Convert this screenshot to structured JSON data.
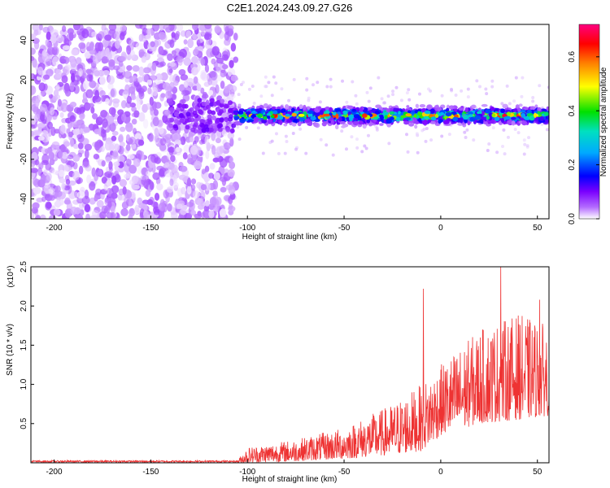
{
  "title": "C2E1.2024.243.09.27.G26",
  "chart_data": [
    {
      "type": "heatmap",
      "xlabel": "Height of straight line (km)",
      "ylabel": "Frequency (Hz)",
      "xlim": [
        -212,
        56
      ],
      "ylim": [
        -50,
        48
      ],
      "xticks": [
        -200,
        -150,
        -100,
        -50,
        0,
        50
      ],
      "xtick_labels": [
        "-200",
        "-150",
        "-100",
        "-50",
        "0",
        "50"
      ],
      "yticks": [
        -40,
        -20,
        0,
        20,
        40
      ],
      "ytick_labels": [
        "-40",
        "-20",
        "0",
        "20",
        "40"
      ],
      "regions": [
        {
          "x_range": [
            -212,
            -106
          ],
          "freq_range": [
            -50,
            48
          ],
          "amplitude": [
            0.02,
            0.05
          ]
        },
        {
          "x_range": [
            -106,
            56
          ],
          "freq_center": 2,
          "freq_halfwidth": 6,
          "amplitude": [
            0.05,
            0.7
          ]
        }
      ],
      "colorbar": {
        "label": "Normalized spectral amplitude",
        "range": [
          0.0,
          0.72
        ],
        "ticks": [
          0.0,
          0.2,
          0.4,
          0.6
        ],
        "tick_labels": [
          "0.0",
          "0.2",
          "0.4",
          "0.6"
        ],
        "colors": [
          "#ffffff",
          "#b36bff",
          "#7a00ff",
          "#0000ff",
          "#00aaff",
          "#00e0c0",
          "#00e000",
          "#ffff00",
          "#ff8000",
          "#ff0000",
          "#ff0080"
        ]
      },
      "grid": false
    },
    {
      "type": "line",
      "xlabel": "Height of straight line (km)",
      "ylabel": "SNR (10 * v/v)",
      "y_multiplier": "(x10⁴)",
      "xlim": [
        -212,
        56
      ],
      "ylim": [
        0,
        2.5
      ],
      "xticks": [
        -200,
        -150,
        -100,
        -50,
        0,
        50
      ],
      "xtick_labels": [
        "-200",
        "-150",
        "-100",
        "-50",
        "0",
        "50"
      ],
      "yticks": [
        0.5,
        1.0,
        1.5,
        2.0,
        2.5
      ],
      "ytick_labels": [
        "0.5",
        "1.0",
        "1.5",
        "2.0",
        "2.5"
      ],
      "series": [
        {
          "color": "#ee3333",
          "envelope": [
            {
              "x": -212,
              "low": 0.0,
              "high": 0.03
            },
            {
              "x": -105,
              "low": 0.0,
              "high": 0.04
            },
            {
              "x": -100,
              "low": 0.0,
              "high": 0.2
            },
            {
              "x": -75,
              "low": 0.02,
              "high": 0.3
            },
            {
              "x": -50,
              "low": 0.05,
              "high": 0.45
            },
            {
              "x": -25,
              "low": 0.1,
              "high": 0.75
            },
            {
              "x": -10,
              "low": 0.15,
              "high": 1.0
            },
            {
              "x": 0,
              "low": 0.35,
              "high": 1.25
            },
            {
              "x": 20,
              "low": 0.5,
              "high": 1.7
            },
            {
              "x": 40,
              "low": 0.55,
              "high": 1.9
            },
            {
              "x": 56,
              "low": 0.6,
              "high": 1.75
            }
          ],
          "peaks": [
            {
              "x": -9,
              "y": 2.22
            },
            {
              "x": 31,
              "y": 2.5
            },
            {
              "x": 51,
              "y": 2.08
            }
          ]
        }
      ],
      "grid": false
    }
  ]
}
